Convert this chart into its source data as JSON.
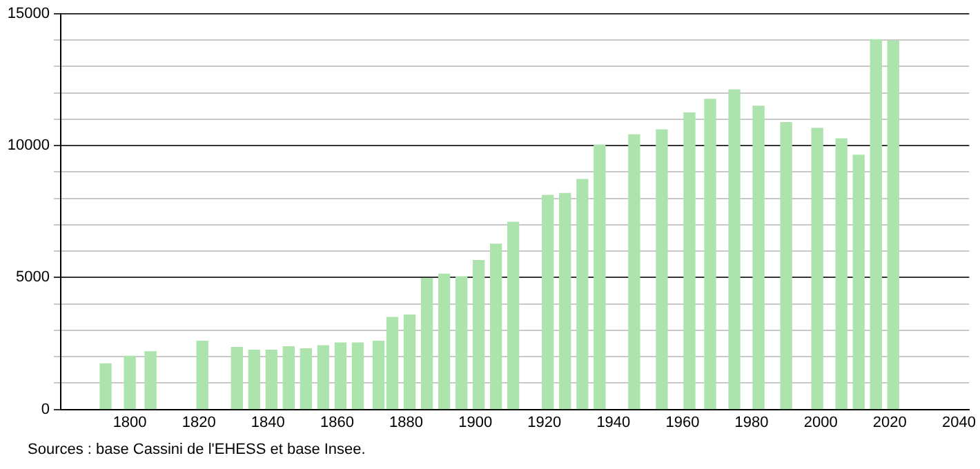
{
  "chart_data": {
    "type": "bar",
    "x": [
      1793,
      1800,
      1806,
      1821,
      1831,
      1836,
      1841,
      1846,
      1851,
      1856,
      1861,
      1866,
      1872,
      1876,
      1881,
      1886,
      1891,
      1896,
      1901,
      1906,
      1911,
      1921,
      1926,
      1931,
      1936,
      1946,
      1954,
      1962,
      1968,
      1975,
      1982,
      1990,
      1999,
      2006,
      2011,
      2016,
      2021
    ],
    "values": [
      1730,
      2020,
      2190,
      2590,
      2350,
      2250,
      2250,
      2380,
      2300,
      2420,
      2520,
      2520,
      2590,
      3490,
      3580,
      4960,
      5130,
      5030,
      5650,
      6270,
      7100,
      8120,
      8190,
      8720,
      10030,
      10410,
      10600,
      11240,
      11760,
      12120,
      11500,
      10880,
      10660,
      10260,
      9640,
      14020,
      13970
    ],
    "color": "#ade3ad",
    "xlim": [
      1780,
      2043
    ],
    "xticks": [
      1800,
      1820,
      1840,
      1860,
      1880,
      1900,
      1920,
      1940,
      1960,
      1980,
      2000,
      2020,
      2040
    ],
    "ylim": [
      0,
      15000
    ],
    "yticks": [
      0,
      {
        "value": 1000,
        "label": null
      },
      {
        "value": 2000,
        "label": null
      },
      {
        "value": 3000,
        "label": null
      },
      {
        "value": 4000,
        "label": null
      },
      5000,
      {
        "value": 6000,
        "label": null
      },
      {
        "value": 7000,
        "label": null
      },
      {
        "value": 8000,
        "label": null
      },
      {
        "value": 9000,
        "label": null
      },
      10000,
      {
        "value": 11000,
        "label": null
      },
      {
        "value": 12000,
        "label": null
      },
      {
        "value": 13000,
        "label": null
      },
      {
        "value": 14000,
        "label": null
      },
      15000
    ],
    "grid": "y",
    "annotations": [
      "Sources : base Cassini de l'EHESS et base Insee."
    ]
  }
}
